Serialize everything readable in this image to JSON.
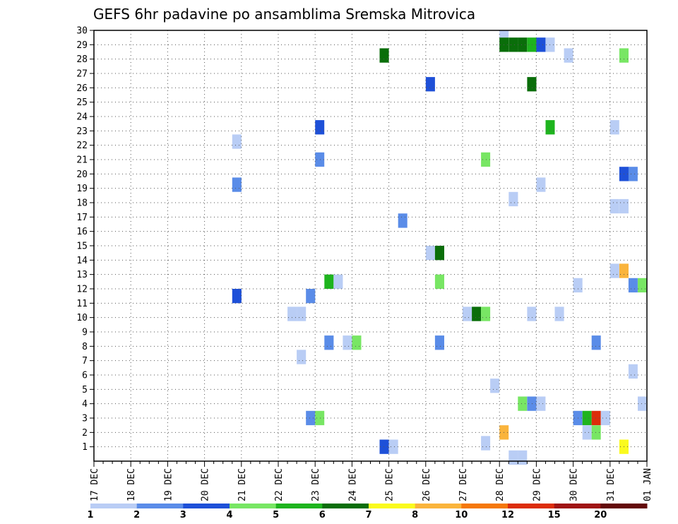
{
  "chart_data": {
    "type": "heatmap",
    "title": "GEFS 6hr padavine po ansamblima Sremska Mitrovica",
    "xlabel": "",
    "ylabel": "",
    "x_ticks": [
      "17 DEC",
      "18 DEC",
      "19 DEC",
      "20 DEC",
      "21 DEC",
      "22 DEC",
      "23 DEC",
      "24 DEC",
      "25 DEC",
      "26 DEC",
      "27 DEC",
      "28 DEC",
      "29 DEC",
      "30 DEC",
      "31 DEC",
      "01 JAN"
    ],
    "y_ticks": [
      1,
      2,
      3,
      4,
      5,
      6,
      7,
      8,
      9,
      10,
      11,
      12,
      13,
      14,
      15,
      16,
      17,
      18,
      19,
      20,
      21,
      22,
      23,
      24,
      25,
      26,
      27,
      28,
      29,
      30
    ],
    "xlim_days": [
      0,
      15
    ],
    "ylim": [
      0,
      30
    ],
    "grid": true,
    "legend": {
      "placement": "bottom",
      "labels": [
        "1",
        "2",
        "3",
        "4",
        "5",
        "6",
        "7",
        "8",
        "10",
        "12",
        "15",
        "20"
      ],
      "colors": [
        "#b9cdf5",
        "#5a8ce8",
        "#1e50d8",
        "#78e664",
        "#1eb41e",
        "#0a6e0a",
        "#fafa1e",
        "#fab43c",
        "#f5780a",
        "#dc2d0a",
        "#a01414",
        "#640a0a"
      ]
    },
    "cells_note_units": "x = day offset from 17 DEC 00z (step 0.25 = 6h), y = ensemble member, c = legend class index",
    "cells": [
      {
        "x": 3.75,
        "y": 11,
        "c": 2
      },
      {
        "x": 3.75,
        "y": 18.75,
        "c": 1
      },
      {
        "x": 3.75,
        "y": 21.75,
        "c": 0
      },
      {
        "x": 5.25,
        "y": 9.75,
        "c": 0
      },
      {
        "x": 5.5,
        "y": 9.75,
        "c": 0
      },
      {
        "x": 5.5,
        "y": 6.75,
        "c": 0
      },
      {
        "x": 5.75,
        "y": 2.5,
        "c": 1
      },
      {
        "x": 5.75,
        "y": 11,
        "c": 1
      },
      {
        "x": 6.0,
        "y": 2.5,
        "c": 3
      },
      {
        "x": 6.0,
        "y": 20.5,
        "c": 1
      },
      {
        "x": 6.0,
        "y": 22.75,
        "c": 2
      },
      {
        "x": 6.25,
        "y": 7.75,
        "c": 1
      },
      {
        "x": 6.25,
        "y": 12,
        "c": 4
      },
      {
        "x": 6.5,
        "y": 12,
        "c": 0
      },
      {
        "x": 6.75,
        "y": 7.75,
        "c": 0
      },
      {
        "x": 7.0,
        "y": 7.75,
        "c": 3
      },
      {
        "x": 7.75,
        "y": 0.5,
        "c": 2
      },
      {
        "x": 8.0,
        "y": 0.5,
        "c": 0
      },
      {
        "x": 7.75,
        "y": 27.75,
        "c": 5
      },
      {
        "x": 8.25,
        "y": 16.25,
        "c": 1
      },
      {
        "x": 9.0,
        "y": 14,
        "c": 0
      },
      {
        "x": 9.0,
        "y": 25.75,
        "c": 2
      },
      {
        "x": 9.25,
        "y": 14,
        "c": 5
      },
      {
        "x": 9.25,
        "y": 7.75,
        "c": 1
      },
      {
        "x": 9.25,
        "y": 12,
        "c": 3
      },
      {
        "x": 10.0,
        "y": 9.75,
        "c": 0
      },
      {
        "x": 10.25,
        "y": 9.75,
        "c": 5
      },
      {
        "x": 10.5,
        "y": 9.75,
        "c": 3
      },
      {
        "x": 10.5,
        "y": 0.75,
        "c": 0
      },
      {
        "x": 10.5,
        "y": 20.5,
        "c": 3
      },
      {
        "x": 10.75,
        "y": 4.75,
        "c": 0
      },
      {
        "x": 11.0,
        "y": 1.5,
        "c": 7
      },
      {
        "x": 11.0,
        "y": 29.5,
        "c": 0
      },
      {
        "x": 11.25,
        "y": 17.75,
        "c": 0
      },
      {
        "x": 11.25,
        "y": -0.25,
        "c": 0
      },
      {
        "x": 11.5,
        "y": -0.25,
        "c": 0
      },
      {
        "x": 11.0,
        "y": 28.5,
        "c": 5
      },
      {
        "x": 11.25,
        "y": 28.5,
        "c": 5
      },
      {
        "x": 11.5,
        "y": 28.5,
        "c": 5
      },
      {
        "x": 11.75,
        "y": 28.5,
        "c": 4
      },
      {
        "x": 12.0,
        "y": 28.5,
        "c": 2
      },
      {
        "x": 12.25,
        "y": 28.5,
        "c": 0
      },
      {
        "x": 11.5,
        "y": 3.5,
        "c": 3
      },
      {
        "x": 11.75,
        "y": 3.5,
        "c": 1
      },
      {
        "x": 12.0,
        "y": 3.5,
        "c": 0
      },
      {
        "x": 11.75,
        "y": 9.75,
        "c": 0
      },
      {
        "x": 11.75,
        "y": 25.75,
        "c": 5
      },
      {
        "x": 12.0,
        "y": 18.75,
        "c": 0
      },
      {
        "x": 12.25,
        "y": 22.75,
        "c": 4
      },
      {
        "x": 12.5,
        "y": 9.75,
        "c": 0
      },
      {
        "x": 12.75,
        "y": 27.75,
        "c": 0
      },
      {
        "x": 13.0,
        "y": 2.5,
        "c": 1
      },
      {
        "x": 13.0,
        "y": 11.75,
        "c": 0
      },
      {
        "x": 13.25,
        "y": 2.5,
        "c": 4
      },
      {
        "x": 13.5,
        "y": 2.5,
        "c": 9
      },
      {
        "x": 13.75,
        "y": 2.5,
        "c": 0
      },
      {
        "x": 13.25,
        "y": 1.5,
        "c": 0
      },
      {
        "x": 13.5,
        "y": 1.5,
        "c": 3
      },
      {
        "x": 13.5,
        "y": 7.75,
        "c": 1
      },
      {
        "x": 14.0,
        "y": 12.75,
        "c": 0
      },
      {
        "x": 14.25,
        "y": 12.75,
        "c": 7
      },
      {
        "x": 14.0,
        "y": 17.25,
        "c": 0
      },
      {
        "x": 14.25,
        "y": 17.25,
        "c": 0
      },
      {
        "x": 14.0,
        "y": 22.75,
        "c": 0
      },
      {
        "x": 14.25,
        "y": 19.5,
        "c": 2
      },
      {
        "x": 14.5,
        "y": 19.5,
        "c": 1
      },
      {
        "x": 14.25,
        "y": 27.75,
        "c": 3
      },
      {
        "x": 14.25,
        "y": 0.5,
        "c": 6
      },
      {
        "x": 14.5,
        "y": 5.75,
        "c": 0
      },
      {
        "x": 14.5,
        "y": 11.75,
        "c": 1
      },
      {
        "x": 14.75,
        "y": 11.75,
        "c": 3
      },
      {
        "x": 14.75,
        "y": 3.5,
        "c": 0
      }
    ]
  }
}
